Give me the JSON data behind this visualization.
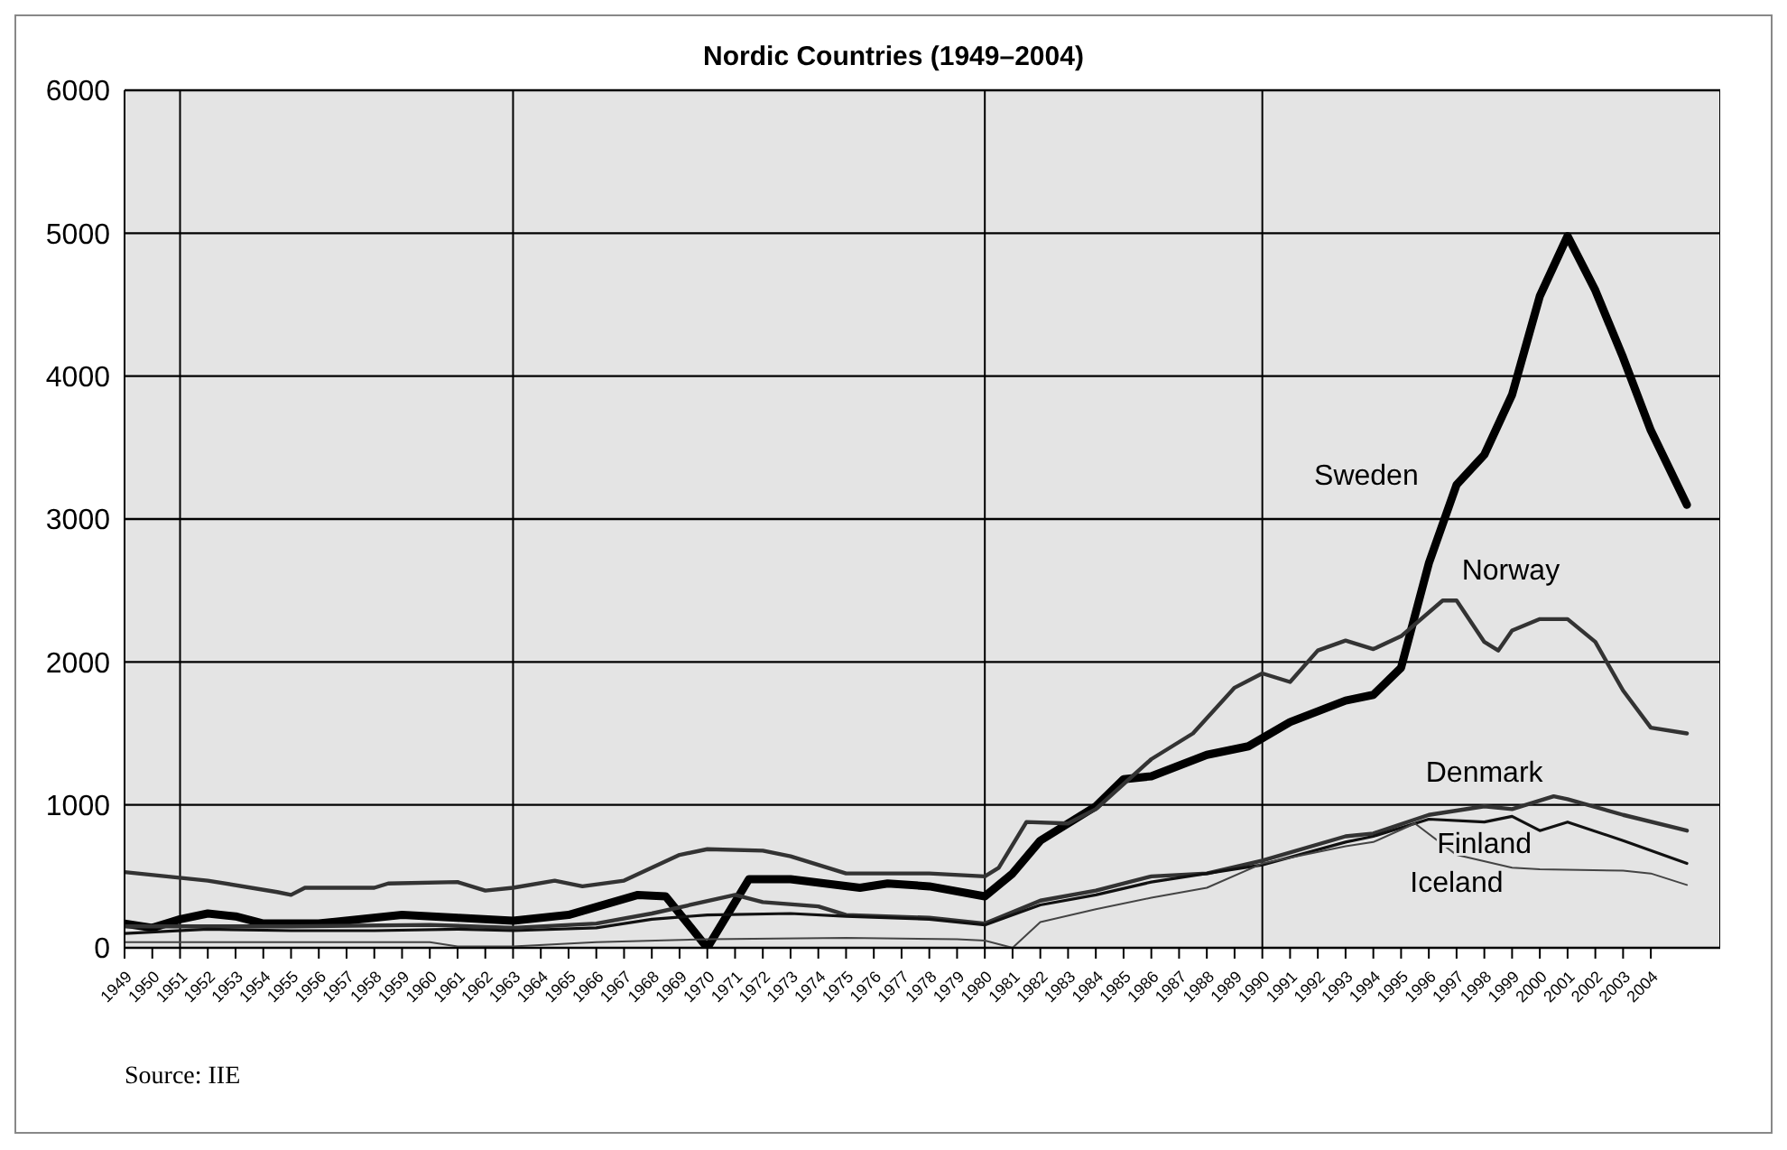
{
  "chart_data": {
    "type": "line",
    "title": "Nordic Countries (1949–2004)",
    "xlim": [
      1949,
      2006.5
    ],
    "xticks": [
      1949,
      1950,
      1951,
      1952,
      1953,
      1954,
      1955,
      1956,
      1957,
      1958,
      1959,
      1960,
      1961,
      1962,
      1963,
      1964,
      1965,
      1966,
      1967,
      1968,
      1969,
      1970,
      1971,
      1972,
      1973,
      1974,
      1975,
      1976,
      1977,
      1978,
      1979,
      1980,
      1981,
      1982,
      1983,
      1984,
      1985,
      1986,
      1987,
      1988,
      1989,
      1990,
      1991,
      1992,
      1993,
      1994,
      1995,
      1996,
      1997,
      1998,
      1999,
      2000,
      2001,
      2002,
      2003,
      2004
    ],
    "ylim": [
      0,
      6000
    ],
    "yticks": [
      0,
      1000,
      2000,
      3000,
      4000,
      5000,
      6000
    ],
    "grid": "y",
    "legend": false,
    "marker": "none",
    "line_style": "solid",
    "series": [
      {
        "name": "Sweden",
        "color": "#000000",
        "x": [
          1949,
          1950,
          1951,
          1952,
          1953,
          1954,
          1956,
          1959,
          1961,
          1963,
          1965,
          1967.5,
          1968.5,
          1970,
          1971.5,
          1973,
          1975.5,
          1976.5,
          1978,
          1980,
          1981,
          1982,
          1984,
          1985,
          1986,
          1988,
          1989.5,
          1991,
          1993,
          1994,
          1995,
          1996,
          1997,
          1998,
          1999,
          2000,
          2001,
          2002,
          2003,
          2004,
          2005.3
        ],
        "values": [
          170,
          140,
          200,
          240,
          220,
          170,
          170,
          230,
          210,
          190,
          230,
          370,
          360,
          0,
          480,
          480,
          420,
          450,
          430,
          360,
          520,
          750,
          990,
          1180,
          1200,
          1350,
          1410,
          1580,
          1730,
          1770,
          1960,
          2690,
          3240,
          3450,
          3870,
          4560,
          4980,
          4600,
          4130,
          3620,
          3100
        ]
      },
      {
        "name": "Norway",
        "color": "#333333",
        "x": [
          1949,
          1952,
          1954.5,
          1955,
          1955.5,
          1958,
          1958.5,
          1961,
          1962,
          1963,
          1964.5,
          1965.5,
          1967,
          1969,
          1970,
          1972,
          1973,
          1975,
          1978,
          1980,
          1980.5,
          1981.5,
          1983,
          1984,
          1986,
          1987.5,
          1989,
          1990,
          1991,
          1992,
          1993,
          1994,
          1995,
          1996.5,
          1997,
          1998,
          1998.5,
          1999,
          2000,
          2001,
          2002,
          2003,
          2004,
          2005.3
        ],
        "values": [
          530,
          470,
          390,
          370,
          420,
          420,
          450,
          460,
          400,
          420,
          470,
          430,
          470,
          650,
          690,
          680,
          640,
          520,
          520,
          500,
          560,
          880,
          870,
          970,
          1320,
          1500,
          1820,
          1920,
          1860,
          2080,
          2150,
          2090,
          2180,
          2430,
          2430,
          2140,
          2080,
          2220,
          2300,
          2300,
          2140,
          1800,
          1540,
          1500
        ]
      },
      {
        "name": "Denmark",
        "color": "#333333",
        "x": [
          1949,
          1955,
          1960,
          1963,
          1966,
          1968,
          1971,
          1972,
          1974,
          1975,
          1978,
          1980,
          1982,
          1984,
          1986,
          1988,
          1990,
          1993,
          1994,
          1996,
          1998,
          1999,
          2000.5,
          2001,
          2003,
          2005.3
        ],
        "values": [
          150,
          150,
          160,
          140,
          170,
          240,
          370,
          320,
          290,
          230,
          210,
          170,
          330,
          400,
          500,
          520,
          610,
          780,
          800,
          930,
          990,
          970,
          1060,
          1040,
          930,
          820
        ]
      },
      {
        "name": "Finland",
        "color": "#111111",
        "x": [
          1949,
          1952,
          1955,
          1958,
          1961,
          1963,
          1966,
          1968,
          1970,
          1973,
          1975,
          1978,
          1980,
          1982,
          1984,
          1986,
          1988,
          1990,
          1993,
          1994,
          1996,
          1998,
          1999,
          2000,
          2001,
          2003,
          2005.3
        ],
        "values": [
          100,
          130,
          120,
          120,
          130,
          120,
          140,
          200,
          230,
          240,
          220,
          200,
          160,
          300,
          370,
          460,
          520,
          580,
          740,
          780,
          900,
          880,
          920,
          820,
          880,
          750,
          590
        ]
      },
      {
        "name": "Iceland",
        "color": "#444444",
        "x": [
          1949,
          1955,
          1960,
          1961,
          1963,
          1966,
          1970,
          1975,
          1979,
          1980,
          1981,
          1982,
          1984,
          1986,
          1988,
          1990,
          1993,
          1994,
          1995.5,
          1997,
          1999,
          2000,
          2003,
          2004,
          2005.3
        ],
        "values": [
          40,
          40,
          40,
          10,
          10,
          40,
          60,
          70,
          60,
          50,
          0,
          180,
          270,
          350,
          420,
          590,
          710,
          740,
          870,
          650,
          560,
          550,
          540,
          520,
          440
        ]
      }
    ],
    "ref_lines": [
      {
        "axis": "x",
        "value": 1951,
        "color": "#000000"
      },
      {
        "axis": "x",
        "value": 1963,
        "color": "#000000"
      },
      {
        "axis": "x",
        "value": 1980,
        "color": "#000000"
      },
      {
        "axis": "x",
        "value": 1990,
        "color": "#000000"
      }
    ],
    "annotations": [
      "Source: IIE"
    ]
  }
}
